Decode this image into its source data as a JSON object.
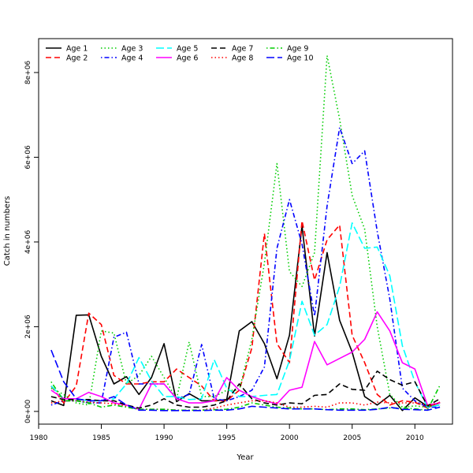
{
  "chart_data": {
    "type": "line",
    "title": "",
    "xlabel": "Year",
    "ylabel": "Catch in numbers",
    "xlim": [
      1980,
      2013
    ],
    "ylim": [
      -300000,
      8800000
    ],
    "x_ticks": [
      1980,
      1985,
      1990,
      1995,
      2000,
      2005,
      2010
    ],
    "x_tick_labels": [
      "1980",
      "1985",
      "1990",
      "1995",
      "2000",
      "2005",
      "2010"
    ],
    "y_ticks": [
      0,
      2000000,
      4000000,
      6000000,
      8000000
    ],
    "y_tick_labels": [
      "0e+00",
      "2e+06",
      "4e+06",
      "6e+06",
      "8e+06"
    ],
    "grid": false,
    "legend_position": "top-left",
    "x": [
      1981,
      1982,
      1983,
      1984,
      1985,
      1986,
      1987,
      1988,
      1989,
      1990,
      1991,
      1992,
      1993,
      1994,
      1995,
      1996,
      1997,
      1998,
      1999,
      2000,
      2001,
      2002,
      2003,
      2004,
      2005,
      2006,
      2007,
      2008,
      2009,
      2010,
      2011,
      2012
    ],
    "series": [
      {
        "name": "Age 1",
        "color": "#000000",
        "dash": "solid",
        "values": [
          250000,
          140000,
          2270000,
          2280000,
          1300000,
          650000,
          820000,
          400000,
          800000,
          1600000,
          230000,
          420000,
          250000,
          250000,
          280000,
          1900000,
          2120000,
          1600000,
          770000,
          1800000,
          4380000,
          1780000,
          3750000,
          2150000,
          1400000,
          350000,
          150000,
          380000,
          20000,
          320000,
          120000,
          200000
        ]
      },
      {
        "name": "Age 2",
        "color": "#ff0000",
        "dash": "dashed",
        "values": [
          600000,
          200000,
          600000,
          2320000,
          2050000,
          850000,
          650000,
          650000,
          700000,
          700000,
          1000000,
          800000,
          600000,
          250000,
          250000,
          500000,
          1500000,
          4200000,
          1600000,
          1150000,
          4500000,
          3100000,
          4050000,
          4400000,
          1800000,
          1150000,
          400000,
          150000,
          250000,
          220000,
          80000,
          220000
        ]
      },
      {
        "name": "Age 3",
        "color": "#00cd00",
        "dash": "dotted",
        "values": [
          550000,
          400000,
          200000,
          150000,
          1900000,
          1850000,
          650000,
          850000,
          1300000,
          800000,
          300000,
          1640000,
          350000,
          350000,
          500000,
          500000,
          1700000,
          3500000,
          5850000,
          3300000,
          2950000,
          3750000,
          8400000,
          6900000,
          5100000,
          4300000,
          2000000,
          400000,
          100000,
          130000,
          100000,
          150000
        ]
      },
      {
        "name": "Age 4",
        "color": "#0000ff",
        "dash": "dotdash",
        "values": [
          150000,
          250000,
          250000,
          200000,
          200000,
          1750000,
          1870000,
          650000,
          650000,
          650000,
          300000,
          400000,
          1580000,
          300000,
          250000,
          350000,
          500000,
          1050000,
          3850000,
          5000000,
          3950000,
          2250000,
          4850000,
          6700000,
          5850000,
          6150000,
          4250000,
          2650000,
          550000,
          250000,
          100000,
          100000
        ]
      },
      {
        "name": "Age 5",
        "color": "#00ffff",
        "dash": "longdash",
        "values": [
          600000,
          300000,
          300000,
          250000,
          250000,
          300000,
          650000,
          1270000,
          720000,
          350000,
          350000,
          280000,
          300000,
          1220000,
          550000,
          350000,
          350000,
          380000,
          400000,
          1200000,
          2600000,
          1800000,
          2050000,
          2950000,
          4450000,
          3850000,
          3880000,
          3200000,
          1550000,
          700000,
          100000,
          150000
        ]
      },
      {
        "name": "Age 6",
        "color": "#ff00ff",
        "dash": "solid",
        "values": [
          500000,
          300000,
          300000,
          450000,
          350000,
          200000,
          150000,
          50000,
          650000,
          650000,
          300000,
          200000,
          200000,
          250000,
          800000,
          500000,
          350000,
          250000,
          180000,
          500000,
          570000,
          1650000,
          1100000,
          1250000,
          1400000,
          1700000,
          2350000,
          1900000,
          1150000,
          1000000,
          150000,
          200000
        ]
      },
      {
        "name": "Age 7",
        "color": "#000000",
        "dash": "dashed",
        "values": [
          350000,
          280000,
          280000,
          280000,
          250000,
          250000,
          150000,
          80000,
          150000,
          300000,
          150000,
          100000,
          100000,
          150000,
          250000,
          650000,
          300000,
          200000,
          150000,
          200000,
          180000,
          380000,
          400000,
          650000,
          520000,
          500000,
          950000,
          750000,
          620000,
          700000,
          130000,
          300000
        ]
      },
      {
        "name": "Age 8",
        "color": "#ff0000",
        "dash": "dotted",
        "values": [
          200000,
          250000,
          250000,
          220000,
          200000,
          180000,
          120000,
          50000,
          50000,
          50000,
          30000,
          30000,
          30000,
          80000,
          150000,
          200000,
          250000,
          250000,
          200000,
          100000,
          100000,
          120000,
          100000,
          200000,
          200000,
          150000,
          220000,
          200000,
          200000,
          200000,
          150000,
          200000
        ]
      },
      {
        "name": "Age 9",
        "color": "#00cd00",
        "dash": "dotdash",
        "values": [
          700000,
          250000,
          250000,
          200000,
          100000,
          150000,
          100000,
          50000,
          50000,
          50000,
          30000,
          30000,
          30000,
          40000,
          50000,
          100000,
          200000,
          150000,
          100000,
          80000,
          60000,
          60000,
          40000,
          60000,
          60000,
          40000,
          60000,
          80000,
          80000,
          60000,
          30000,
          620000
        ]
      },
      {
        "name": "Age 10",
        "color": "#0000ff",
        "dash": "longdash",
        "values": [
          1450000,
          700000,
          300000,
          250000,
          250000,
          350000,
          150000,
          30000,
          30000,
          20000,
          20000,
          20000,
          20000,
          30000,
          30000,
          60000,
          120000,
          100000,
          80000,
          60000,
          60000,
          60000,
          40000,
          30000,
          30000,
          30000,
          50000,
          100000,
          50000,
          40000,
          30000,
          100000
        ]
      }
    ]
  }
}
